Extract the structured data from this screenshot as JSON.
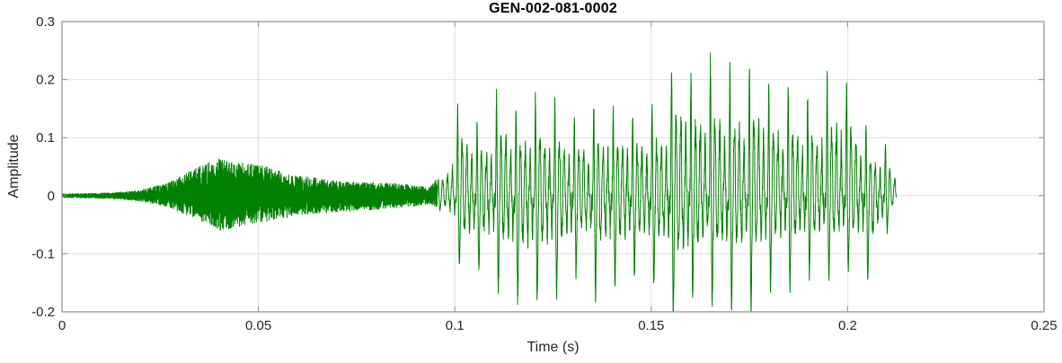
{
  "chart_data": {
    "type": "line",
    "subtype": "audio-waveform",
    "title": "GEN-002-081-0002",
    "xlabel": "Time (s)",
    "ylabel": "Amplitude",
    "xlim": [
      0,
      0.25
    ],
    "ylim": [
      -0.2,
      0.3
    ],
    "xticks": [
      0,
      0.05,
      0.1,
      0.15,
      0.2,
      0.25
    ],
    "xtick_labels": [
      "0",
      "0.05",
      "0.1",
      "0.15",
      "0.2",
      "0.25"
    ],
    "yticks": [
      -0.2,
      -0.1,
      0,
      0.1,
      0.2,
      0.3
    ],
    "ytick_labels": [
      "-0.2",
      "-0.1",
      "0",
      "0.1",
      "0.2",
      "0.3"
    ],
    "grid": true,
    "box": true,
    "legend": null,
    "line_color": "#008000",
    "axis_color": "#8c8c8c",
    "grid_color": "#e0e0e0",
    "label_color": "#262626",
    "title_color": "#000000",
    "background_color": "#ffffff",
    "signal": {
      "start_s": 0,
      "end_s": 0.2125,
      "voiced_start_s": 0.0955,
      "f0_hz": 202,
      "envelope": [
        [
          0.0,
          0.003,
          -0.003
        ],
        [
          0.008,
          0.004,
          -0.004
        ],
        [
          0.013,
          0.005,
          -0.005
        ],
        [
          0.018,
          0.008,
          -0.008
        ],
        [
          0.022,
          0.013,
          -0.012
        ],
        [
          0.026,
          0.02,
          -0.018
        ],
        [
          0.03,
          0.032,
          -0.028
        ],
        [
          0.034,
          0.048,
          -0.04
        ],
        [
          0.038,
          0.06,
          -0.052
        ],
        [
          0.041,
          0.068,
          -0.062
        ],
        [
          0.044,
          0.058,
          -0.055
        ],
        [
          0.048,
          0.055,
          -0.048
        ],
        [
          0.052,
          0.05,
          -0.045
        ],
        [
          0.056,
          0.042,
          -0.04
        ],
        [
          0.06,
          0.036,
          -0.034
        ],
        [
          0.065,
          0.03,
          -0.03
        ],
        [
          0.07,
          0.026,
          -0.028
        ],
        [
          0.075,
          0.023,
          -0.026
        ],
        [
          0.08,
          0.022,
          -0.024
        ],
        [
          0.085,
          0.021,
          -0.021
        ],
        [
          0.09,
          0.018,
          -0.018
        ],
        [
          0.0935,
          0.014,
          -0.014
        ],
        [
          0.0955,
          0.03,
          -0.02
        ],
        [
          0.098,
          0.08,
          -0.05
        ],
        [
          0.1,
          0.14,
          -0.1
        ],
        [
          0.103,
          0.16,
          -0.12
        ],
        [
          0.107,
          0.155,
          -0.145
        ],
        [
          0.112,
          0.19,
          -0.16
        ],
        [
          0.117,
          0.165,
          -0.185
        ],
        [
          0.122,
          0.19,
          -0.175
        ],
        [
          0.127,
          0.155,
          -0.155
        ],
        [
          0.132,
          0.16,
          -0.145
        ],
        [
          0.137,
          0.155,
          -0.16
        ],
        [
          0.142,
          0.16,
          -0.15
        ],
        [
          0.147,
          0.185,
          -0.155
        ],
        [
          0.152,
          0.195,
          -0.165
        ],
        [
          0.157,
          0.24,
          -0.19
        ],
        [
          0.161,
          0.265,
          -0.2
        ],
        [
          0.165,
          0.27,
          -0.195
        ],
        [
          0.169,
          0.26,
          -0.2
        ],
        [
          0.173,
          0.22,
          -0.175
        ],
        [
          0.178,
          0.21,
          -0.155
        ],
        [
          0.183,
          0.2,
          -0.145
        ],
        [
          0.188,
          0.175,
          -0.14
        ],
        [
          0.193,
          0.2,
          -0.135
        ],
        [
          0.198,
          0.205,
          -0.125
        ],
        [
          0.201,
          0.21,
          -0.12
        ],
        [
          0.204,
          0.13,
          -0.13
        ],
        [
          0.207,
          0.1,
          -0.135
        ],
        [
          0.21,
          0.09,
          -0.06
        ],
        [
          0.2125,
          0.05,
          -0.02
        ]
      ]
    }
  }
}
